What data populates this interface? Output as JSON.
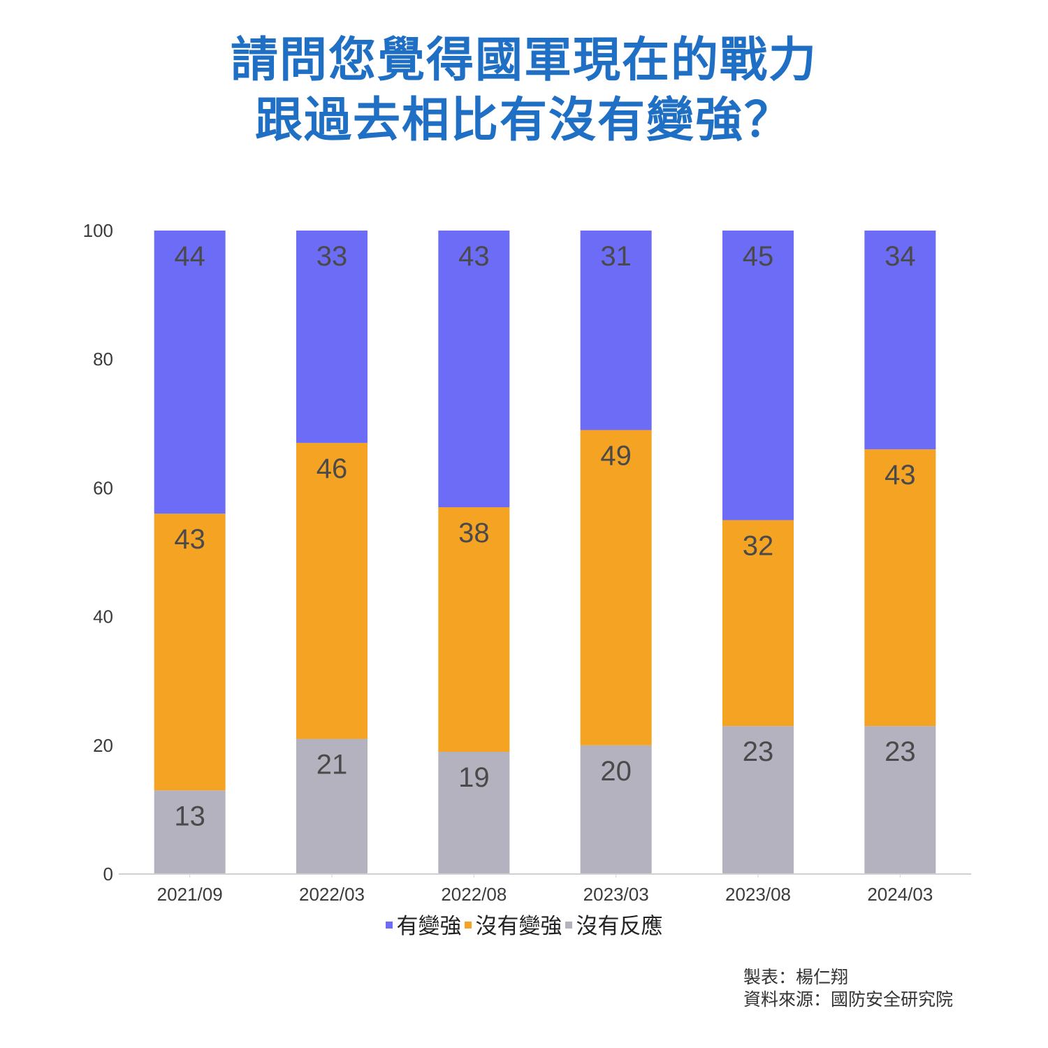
{
  "title_lines": [
    "請問您覺得國軍現在的戰力",
    "跟過去相比有沒有變強？"
  ],
  "credits": {
    "author_line": "製表：楊仁翔",
    "source_line": "資料來源：國防安全研究院"
  },
  "chart_data": {
    "type": "bar",
    "stacked": true,
    "title": "請問您覺得國軍現在的戰力跟過去相比有沒有變強？",
    "xlabel": "",
    "ylabel": "",
    "ylim": [
      0,
      100
    ],
    "yticks": [
      0,
      20,
      40,
      60,
      80,
      100
    ],
    "grid": false,
    "legend_position": "bottom",
    "categories": [
      "2021/09",
      "2022/03",
      "2022/08",
      "2023/03",
      "2023/08",
      "2024/03"
    ],
    "series": [
      {
        "name": "沒有反應",
        "color": "#b4b2be",
        "values": [
          13,
          21,
          19,
          20,
          23,
          23
        ]
      },
      {
        "name": "沒有變強",
        "color": "#f4a323",
        "values": [
          43,
          46,
          38,
          49,
          32,
          43
        ]
      },
      {
        "name": "有變強",
        "color": "#6c6cf7",
        "values": [
          44,
          33,
          43,
          31,
          45,
          34
        ]
      }
    ],
    "legend_order": [
      "有變強",
      "沒有變強",
      "沒有反應"
    ]
  }
}
